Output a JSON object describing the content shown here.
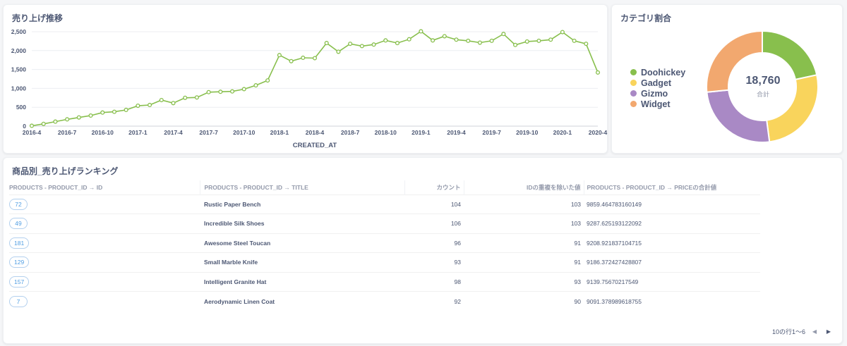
{
  "line_card": {
    "title": "売り上げ推移"
  },
  "pie_card": {
    "title": "カテゴリ割合",
    "total_value": "18,760",
    "total_label": "合計"
  },
  "table_card": {
    "title": "商品別_売り上げランキング",
    "columns": [
      "PRODUCTS - PRODUCT_ID → ID",
      "PRODUCTS - PRODUCT_ID → TITLE",
      "カウント",
      "IDの重複を除いた値",
      "PRODUCTS - PRODUCT_ID → PRICEの合計値"
    ],
    "rows": [
      [
        "72",
        "Rustic Paper Bench",
        "104",
        "103",
        "9859.464783160149"
      ],
      [
        "49",
        "Incredible Silk Shoes",
        "106",
        "103",
        "9287.625193122092"
      ],
      [
        "181",
        "Awesome Steel Toucan",
        "96",
        "91",
        "9208.921837104715"
      ],
      [
        "129",
        "Small Marble Knife",
        "93",
        "91",
        "9186.372427428807"
      ],
      [
        "157",
        "Intelligent Granite Hat",
        "98",
        "93",
        "9139.75670217549"
      ],
      [
        "7",
        "Aerodynamic Linen Coat",
        "92",
        "90",
        "9091.378989618755"
      ]
    ],
    "pagination": {
      "label": "10の行1〜6",
      "prev_icon": "chevron-left-icon",
      "next_icon": "chevron-right-icon"
    }
  },
  "chart_data": [
    {
      "type": "line",
      "title": "売り上げ推移",
      "xlabel": "CREATED_AT",
      "ylabel": "",
      "x": [
        "2016-4",
        "2016-5",
        "2016-6",
        "2016-7",
        "2016-8",
        "2016-9",
        "2016-10",
        "2016-11",
        "2016-12",
        "2017-1",
        "2017-2",
        "2017-3",
        "2017-4",
        "2017-5",
        "2017-6",
        "2017-7",
        "2017-8",
        "2017-9",
        "2017-10",
        "2017-11",
        "2017-12",
        "2018-1",
        "2018-2",
        "2018-3",
        "2018-4",
        "2018-5",
        "2018-6",
        "2018-7",
        "2018-8",
        "2018-9",
        "2018-10",
        "2018-11",
        "2018-12",
        "2019-1",
        "2019-2",
        "2019-3",
        "2019-4",
        "2019-5",
        "2019-6",
        "2019-7",
        "2019-8",
        "2019-9",
        "2019-10",
        "2019-11",
        "2019-12",
        "2020-1",
        "2020-2",
        "2020-3",
        "2020-4"
      ],
      "x_ticks": [
        "2016-4",
        "2016-7",
        "2016-10",
        "2017-1",
        "2017-4",
        "2017-7",
        "2017-10",
        "2018-1",
        "2018-4",
        "2018-7",
        "2018-10",
        "2019-1",
        "2019-4",
        "2019-7",
        "2019-10",
        "2020-1",
        "2020-4"
      ],
      "series": [
        {
          "values": [
            10,
            60,
            120,
            180,
            230,
            280,
            360,
            380,
            430,
            540,
            560,
            690,
            610,
            750,
            760,
            900,
            910,
            920,
            980,
            1080,
            1210,
            1880,
            1720,
            1810,
            1800,
            2200,
            1970,
            2180,
            2120,
            2160,
            2270,
            2200,
            2300,
            2510,
            2270,
            2380,
            2290,
            2260,
            2210,
            2260,
            2440,
            2150,
            2240,
            2260,
            2290,
            2490,
            2260,
            2180,
            1420
          ]
        }
      ],
      "ylim": [
        0,
        2500
      ],
      "y_ticks": [
        "0",
        "500",
        "1,000",
        "1,500",
        "2,000",
        "2,500"
      ],
      "colors": {
        "line": "#88bf4d"
      },
      "grid": true
    },
    {
      "type": "pie",
      "title": "カテゴリ割合",
      "categories": [
        "Doohickey",
        "Gadget",
        "Gizmo",
        "Widget"
      ],
      "values": [
        4054,
        4939,
        4784,
        4983
      ],
      "colors": [
        "#88bf4d",
        "#f9d45c",
        "#a989c5",
        "#f2a86f"
      ],
      "legend": "left"
    }
  ]
}
